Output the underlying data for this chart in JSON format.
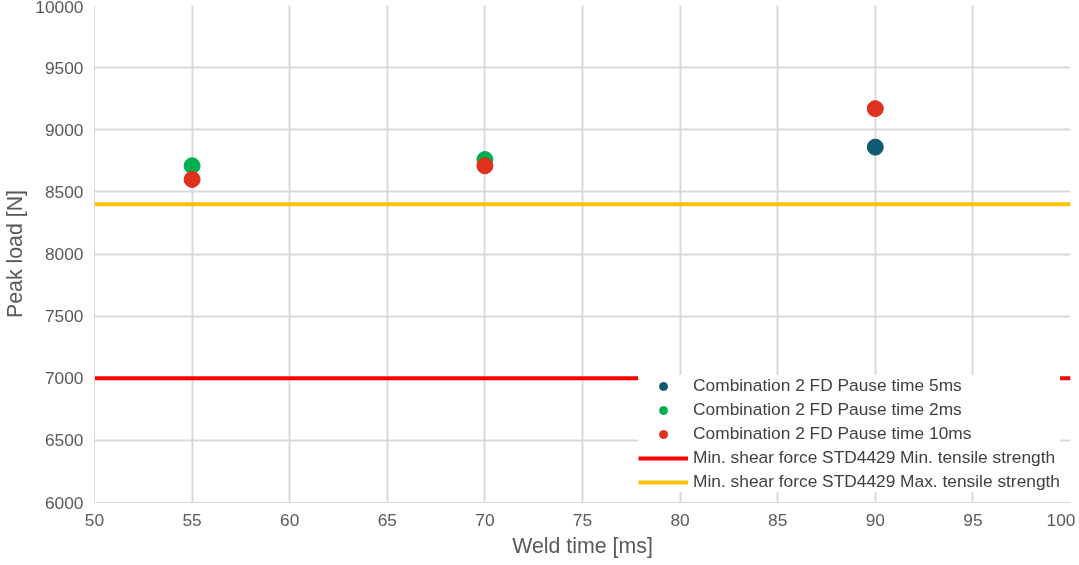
{
  "chart_data": {
    "type": "scatter",
    "xlabel": "Weld time [ms]",
    "ylabel": "Peak load [N]",
    "xlim": [
      50,
      100
    ],
    "xticks": [
      50,
      55,
      60,
      65,
      70,
      75,
      80,
      85,
      90,
      95,
      100
    ],
    "ylim": [
      6000,
      10000
    ],
    "yticks": [
      6000,
      6500,
      7000,
      7500,
      8000,
      8500,
      9000,
      9500,
      10000
    ],
    "grid": true,
    "legend": "bottom right",
    "x": [
      55,
      70,
      90
    ],
    "series": [
      {
        "name": "Combination 2 FD Pause time 5ms",
        "color": "#0e5a73",
        "marker": "circle",
        "values": [
          null,
          null,
          8860
        ]
      },
      {
        "name": "Combination 2 FD Pause time 2ms",
        "color": "#00b050",
        "marker": "circle",
        "values": [
          8710,
          8760,
          null
        ]
      },
      {
        "name": "Combination 2 FD Pause time 10ms",
        "color": "#e0301e",
        "marker": "circle",
        "values": [
          8600,
          8710,
          9170
        ]
      }
    ],
    "ref_lines": [
      {
        "axis": "y",
        "value": 7000,
        "label": "Min. shear force STD4429 Min. tensile strength",
        "color": "#ff0000"
      },
      {
        "axis": "y",
        "value": 8400,
        "label": "Min. shear force STD4429 Max. tensile strength",
        "color": "#ffc000"
      }
    ]
  }
}
